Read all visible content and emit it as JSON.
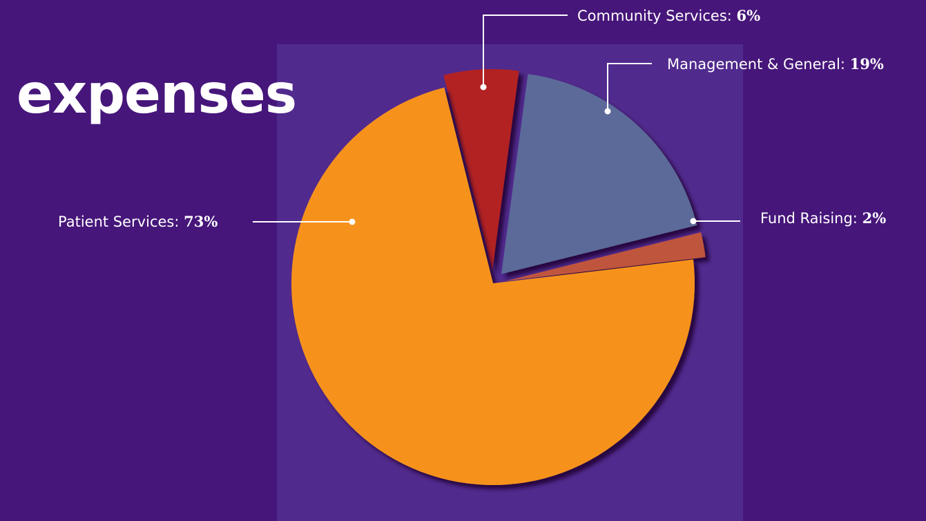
{
  "title": "expenses",
  "colors": {
    "background": "#46167a",
    "panel": "#512a8d",
    "patient_services": "#f6921e",
    "community_services": "#b22222",
    "management_general": "#5b6a99",
    "fund_raising": "#c0543c"
  },
  "chart_data": {
    "type": "pie",
    "title": "expenses",
    "slices": [
      {
        "name": "Community Services",
        "value": 6,
        "label": "Community Services:",
        "display": "6%",
        "color": "#b22222"
      },
      {
        "name": "Management & General",
        "value": 19,
        "label": "Management & General:",
        "display": "19%",
        "color": "#5b6a99"
      },
      {
        "name": "Fund Raising",
        "value": 2,
        "label": "Fund Raising:",
        "display": "2%",
        "color": "#c0543c"
      },
      {
        "name": "Patient Services",
        "value": 73,
        "label": "Patient Services:",
        "display": "73%",
        "color": "#f6921e"
      }
    ],
    "exploded": true,
    "legend": "callout labels"
  }
}
